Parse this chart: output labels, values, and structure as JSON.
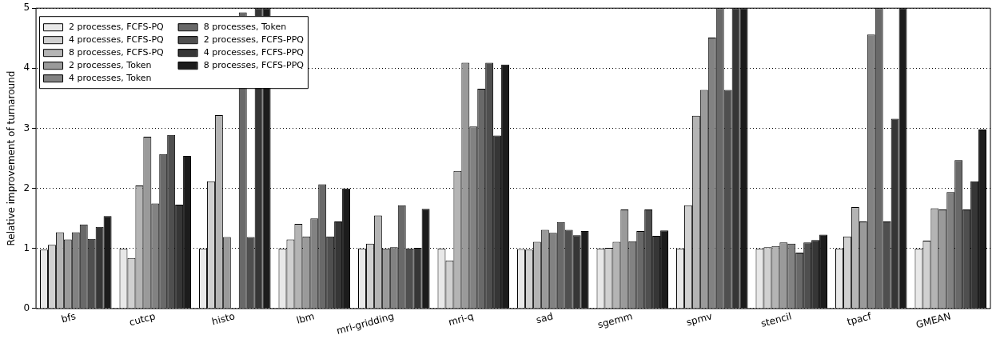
{
  "chart_data": {
    "type": "bar",
    "ylabel": "Relative improvement of turnaround",
    "categories": [
      "bfs",
      "cutcp",
      "histo",
      "lbm",
      "mri-gridding",
      "mri-q",
      "sad",
      "sgemm",
      "spmv",
      "stencil",
      "tpacf",
      "GMEAN"
    ],
    "ylim": [
      0,
      5
    ],
    "yticks": [
      0,
      1,
      2,
      3,
      4,
      5
    ],
    "grid": "y",
    "legend": "top left",
    "series": [
      {
        "name": "2 processes, FCFS-PQ",
        "color": "#e8e8e8",
        "values": [
          0.98,
          1.0,
          1.0,
          1.0,
          1.0,
          1.0,
          0.99,
          1.0,
          1.0,
          1.0,
          1.0,
          1.0
        ]
      },
      {
        "name": "4 processes, FCFS-PQ",
        "color": "#d0d0d0",
        "values": [
          1.06,
          0.84,
          2.12,
          1.15,
          1.08,
          0.8,
          0.98,
          1.01,
          1.72,
          1.02,
          1.2,
          1.13
        ]
      },
      {
        "name": "8 processes, FCFS-PQ",
        "color": "#b4b4b4",
        "values": [
          1.27,
          2.05,
          3.22,
          1.41,
          1.55,
          2.29,
          1.11,
          1.11,
          3.21,
          1.04,
          1.69,
          1.67
        ]
      },
      {
        "name": "2 processes, Token",
        "color": "#9a9a9a",
        "values": [
          1.15,
          2.86,
          1.19,
          1.2,
          1.0,
          4.09,
          1.31,
          1.65,
          3.64,
          1.1,
          1.45,
          1.65
        ]
      },
      {
        "name": "4 processes, Token",
        "color": "#828282",
        "values": [
          1.27,
          1.75,
          null,
          1.5,
          1.02,
          3.03,
          1.26,
          1.12,
          4.51,
          1.08,
          4.56,
          1.94
        ]
      },
      {
        "name": "8 processes, Token",
        "color": "#696969",
        "values": [
          1.4,
          2.57,
          4.93,
          2.07,
          1.72,
          3.66,
          1.44,
          1.29,
          5,
          0.93,
          5,
          2.47
        ]
      },
      {
        "name": "2 processes, FCFS-PPQ",
        "color": "#4f4f4f",
        "values": [
          1.16,
          2.89,
          1.19,
          1.2,
          1.0,
          4.09,
          1.31,
          1.65,
          3.64,
          1.1,
          1.45,
          1.65
        ]
      },
      {
        "name": "4 processes, FCFS-PPQ",
        "color": "#363636",
        "values": [
          1.36,
          1.73,
          5,
          1.45,
          1.01,
          2.88,
          1.22,
          1.21,
          5,
          1.14,
          3.16,
          2.12
        ]
      },
      {
        "name": "8 processes, FCFS-PPQ",
        "color": "#1c1c1c",
        "values": [
          1.54,
          2.54,
          5,
          2.0,
          1.66,
          4.06,
          1.29,
          1.3,
          5,
          1.23,
          5,
          2.98
        ]
      }
    ]
  }
}
